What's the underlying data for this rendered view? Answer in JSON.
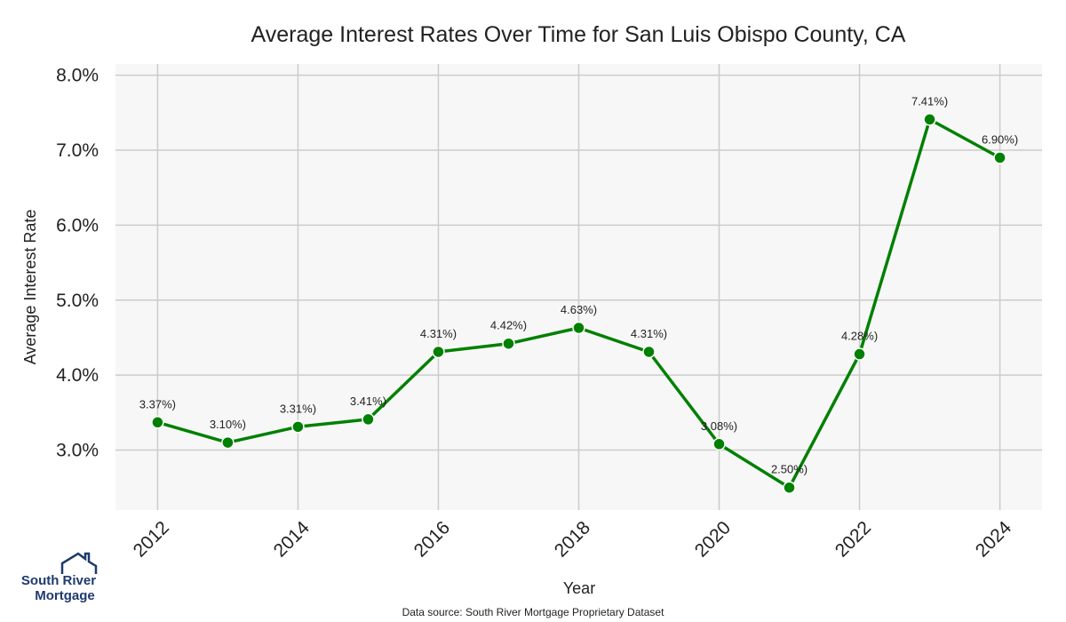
{
  "chart_data": {
    "type": "line",
    "title": "Average Interest Rates Over Time for San Luis Obispo County, CA",
    "xlabel": "Year",
    "ylabel": "Average Interest Rate",
    "x": [
      2012,
      2013,
      2014,
      2015,
      2016,
      2017,
      2018,
      2019,
      2020,
      2021,
      2022,
      2023,
      2024
    ],
    "values": [
      3.37,
      3.1,
      3.31,
      3.41,
      4.31,
      4.42,
      4.63,
      4.31,
      3.08,
      2.5,
      4.28,
      7.41,
      6.9
    ],
    "data_labels": [
      "3.37%)",
      "3.10%)",
      "3.31%)",
      "3.41%)",
      "4.31%)",
      "4.42%)",
      "4.63%)",
      "4.31%)",
      "3.08%)",
      "2.50%)",
      "4.28%)",
      "7.41%)",
      "6.90%)"
    ],
    "x_ticks": [
      "2012",
      "2014",
      "2016",
      "2018",
      "2020",
      "2022",
      "2024"
    ],
    "y_ticks": [
      "3.0%",
      "4.0%",
      "5.0%",
      "6.0%",
      "7.0%",
      "8.0%"
    ],
    "y_tick_values": [
      3,
      4,
      5,
      6,
      7,
      8
    ],
    "ylim": [
      2.2,
      8.15
    ],
    "xlim": [
      2011.4,
      2024.6
    ],
    "grid": true,
    "line_color": "#008000",
    "marker_color": "#008000",
    "plot_background": "#f7f7f7",
    "grid_color": "#cccccc"
  },
  "footer": {
    "source": "Data source: South River Mortgage Proprietary Dataset"
  },
  "logo": {
    "line1": "South River",
    "line2": "Mortgage",
    "color": "#1e3a6e"
  }
}
